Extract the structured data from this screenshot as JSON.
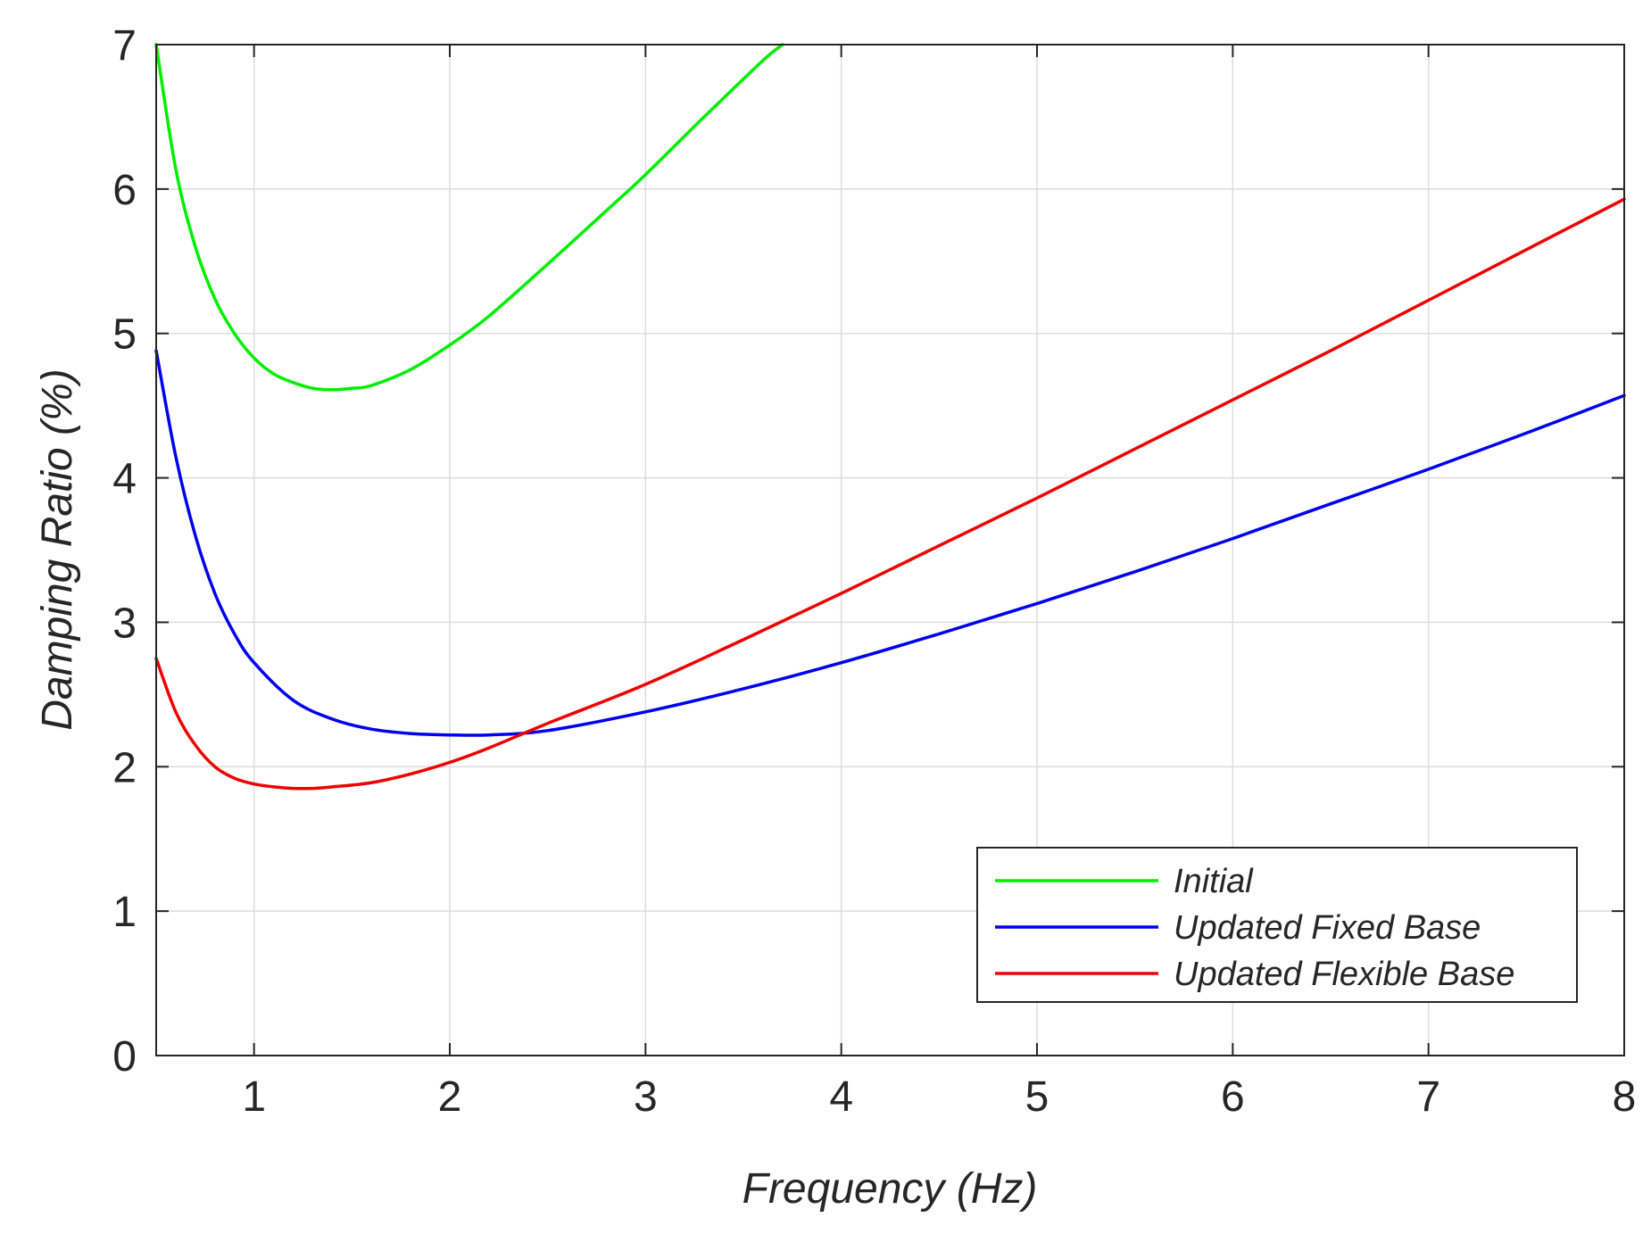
{
  "chart_data": {
    "type": "line",
    "title": "",
    "xlabel": "Frequency (Hz)",
    "ylabel": "Damping Ratio (%)",
    "xlim": [
      0.5,
      8
    ],
    "ylim": [
      0,
      7
    ],
    "xticks": [
      1,
      2,
      3,
      4,
      5,
      6,
      7,
      8
    ],
    "yticks": [
      0,
      1,
      2,
      3,
      4,
      5,
      6,
      7
    ],
    "grid": true,
    "legend_position": "bottom-right",
    "series": [
      {
        "name": "Initial",
        "color": "#00ee00",
        "x": [
          0.5,
          0.6,
          0.7,
          0.8,
          0.9,
          1.0,
          1.1,
          1.2,
          1.3,
          1.4,
          1.5,
          1.6,
          1.8,
          2.0,
          2.2,
          2.5,
          2.8,
          3.0,
          3.3,
          3.6,
          3.7
        ],
        "y": [
          7.0,
          6.14,
          5.6,
          5.24,
          5.0,
          4.83,
          4.72,
          4.66,
          4.62,
          4.61,
          4.62,
          4.64,
          4.75,
          4.92,
          5.12,
          5.48,
          5.85,
          6.1,
          6.5,
          6.89,
          7.0
        ]
      },
      {
        "name": "Updated Fixed Base",
        "color": "#0000ee",
        "x": [
          0.5,
          0.6,
          0.7,
          0.8,
          0.9,
          1.0,
          1.2,
          1.4,
          1.6,
          1.8,
          2.0,
          2.2,
          2.5,
          3.0,
          3.5,
          4.0,
          4.5,
          5.0,
          5.5,
          6.0,
          6.5,
          7.0,
          7.5,
          8.0
        ],
        "y": [
          4.88,
          4.15,
          3.6,
          3.2,
          2.92,
          2.72,
          2.46,
          2.33,
          2.26,
          2.23,
          2.22,
          2.22,
          2.25,
          2.38,
          2.54,
          2.72,
          2.92,
          3.13,
          3.35,
          3.58,
          3.82,
          4.06,
          4.31,
          4.57
        ]
      },
      {
        "name": "Updated Flexible Base",
        "color": "#ee0000",
        "x": [
          0.5,
          0.6,
          0.7,
          0.8,
          0.9,
          1.0,
          1.1,
          1.2,
          1.3,
          1.4,
          1.6,
          1.8,
          2.0,
          2.2,
          2.5,
          3.0,
          3.5,
          4.0,
          4.5,
          5.0,
          5.5,
          6.0,
          6.5,
          7.0,
          7.5,
          8.0
        ],
        "y": [
          2.75,
          2.38,
          2.15,
          2.0,
          1.92,
          1.88,
          1.86,
          1.85,
          1.85,
          1.86,
          1.89,
          1.95,
          2.03,
          2.13,
          2.3,
          2.57,
          2.88,
          3.2,
          3.53,
          3.86,
          4.2,
          4.54,
          4.88,
          5.23,
          5.58,
          5.93
        ]
      }
    ]
  }
}
